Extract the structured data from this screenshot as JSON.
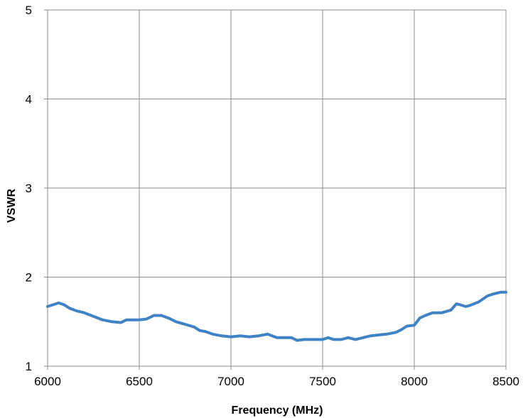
{
  "chart_data": {
    "type": "line",
    "title": "",
    "xlabel": "Frequency (MHz)",
    "ylabel": "VSWR",
    "xlim": [
      6000,
      8500
    ],
    "ylim": [
      1,
      5
    ],
    "x_ticks": [
      6000,
      6500,
      7000,
      7500,
      8000,
      8500
    ],
    "y_ticks": [
      1,
      2,
      3,
      4,
      5
    ],
    "grid": true,
    "legend": "none",
    "series": [
      {
        "color": "#3f82c6",
        "x": [
          6000,
          6030,
          6060,
          6090,
          6120,
          6160,
          6200,
          6250,
          6300,
          6350,
          6400,
          6430,
          6460,
          6500,
          6540,
          6580,
          6620,
          6660,
          6700,
          6750,
          6800,
          6830,
          6860,
          6900,
          6950,
          7000,
          7050,
          7100,
          7150,
          7200,
          7250,
          7300,
          7330,
          7360,
          7400,
          7450,
          7500,
          7530,
          7560,
          7600,
          7640,
          7680,
          7720,
          7760,
          7800,
          7850,
          7900,
          7930,
          7960,
          8000,
          8030,
          8060,
          8100,
          8150,
          8200,
          8230,
          8250,
          8280,
          8300,
          8350,
          8400,
          8430,
          8470,
          8500
        ],
        "y": [
          1.67,
          1.69,
          1.71,
          1.69,
          1.65,
          1.62,
          1.6,
          1.56,
          1.52,
          1.5,
          1.49,
          1.52,
          1.52,
          1.52,
          1.53,
          1.57,
          1.57,
          1.54,
          1.5,
          1.47,
          1.44,
          1.4,
          1.39,
          1.36,
          1.34,
          1.33,
          1.34,
          1.33,
          1.34,
          1.36,
          1.32,
          1.32,
          1.32,
          1.29,
          1.3,
          1.3,
          1.3,
          1.32,
          1.3,
          1.3,
          1.32,
          1.3,
          1.32,
          1.34,
          1.35,
          1.36,
          1.38,
          1.41,
          1.45,
          1.46,
          1.54,
          1.57,
          1.6,
          1.6,
          1.63,
          1.7,
          1.69,
          1.67,
          1.68,
          1.72,
          1.79,
          1.81,
          1.83,
          1.83
        ]
      }
    ]
  }
}
